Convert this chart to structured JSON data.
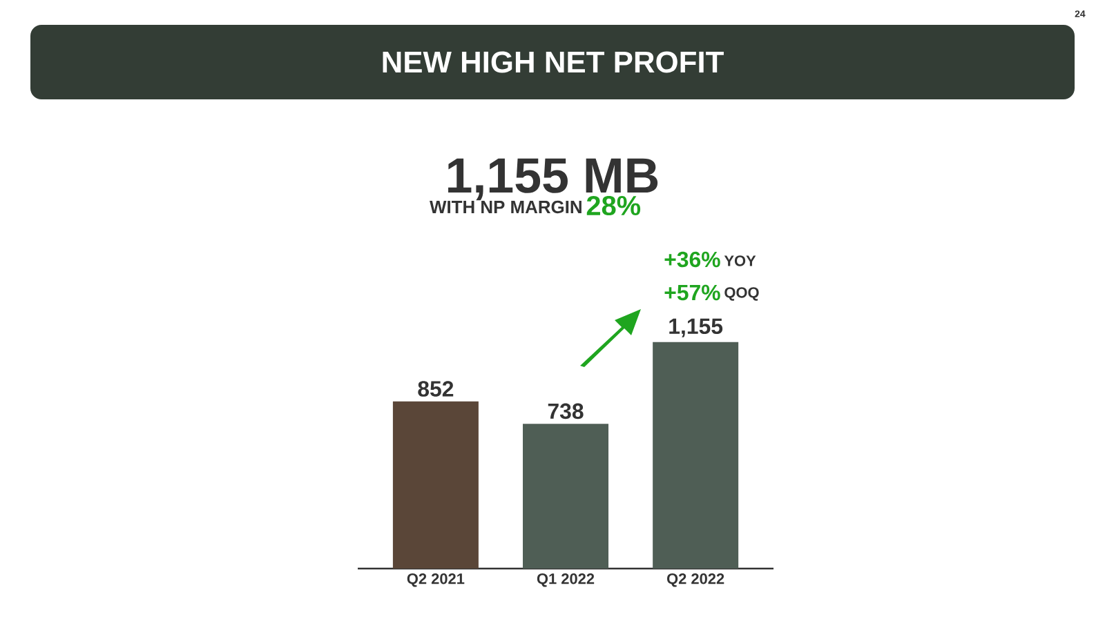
{
  "chart_data": {
    "type": "bar",
    "title": "NEW HIGH NET PROFIT",
    "subtitle": "1,155 MB",
    "categories": [
      "Q2 2021",
      "Q1 2022",
      "Q2 2022"
    ],
    "values": [
      852,
      738,
      1155
    ],
    "value_labels": [
      "852",
      "738",
      "1,155"
    ],
    "colors": [
      "#5a4638",
      "#4f5e55",
      "#4f5e55"
    ],
    "annotations": [
      "24",
      "WITH NP MARGIN",
      "28%",
      "+36%",
      "YOY",
      "+57%",
      "QOQ"
    ]
  }
}
